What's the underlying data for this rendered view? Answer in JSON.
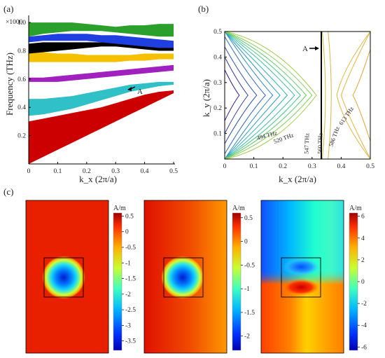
{
  "colors": {
    "band_green": "#2ca02c",
    "band_blue": "#1f3fe0",
    "band_black": "#000000",
    "band_yellow": "#f5c000",
    "band_purple": "#a020c0",
    "band_cyan": "#30c0c8",
    "band_red": "#cc0000",
    "marker_line": "#000000"
  },
  "chart_data": [
    {
      "panel_label": "(a)",
      "type": "area",
      "ylabel": "Frequency (THz)",
      "y_multiplier": "×1000",
      "xlabel": "k_x (2π/a)",
      "xlim": [
        0,
        0.5
      ],
      "ylim": [
        0,
        1.05
      ],
      "x_ticks": [
        "0",
        "0.1",
        "0.2",
        "0.3",
        "0.4",
        "0.5"
      ],
      "y_ticks": [
        "0.2",
        "0.4",
        "0.6",
        "0.8",
        "1.0"
      ],
      "x": [
        0,
        0.05,
        0.1,
        0.15,
        0.2,
        0.25,
        0.3,
        0.35,
        0.4,
        0.45,
        0.5
      ],
      "bands": [
        {
          "color": "band_red",
          "lower": [
            0.0,
            0.05,
            0.1,
            0.15,
            0.2,
            0.25,
            0.3,
            0.35,
            0.4,
            0.45,
            0.5
          ],
          "upper": [
            0.3,
            0.32,
            0.34,
            0.36,
            0.38,
            0.4,
            0.43,
            0.46,
            0.49,
            0.51,
            0.52
          ]
        },
        {
          "color": "band_cyan",
          "lower": [
            0.34,
            0.35,
            0.37,
            0.39,
            0.42,
            0.45,
            0.48,
            0.51,
            0.53,
            0.55,
            0.56
          ],
          "upper": [
            0.46,
            0.46,
            0.47,
            0.48,
            0.5,
            0.52,
            0.54,
            0.56,
            0.57,
            0.58,
            0.58
          ]
        },
        {
          "color": "band_purple",
          "lower": [
            0.58,
            0.58,
            0.58,
            0.59,
            0.6,
            0.61,
            0.62,
            0.63,
            0.64,
            0.65,
            0.66
          ],
          "upper": [
            0.61,
            0.61,
            0.62,
            0.63,
            0.64,
            0.65,
            0.66,
            0.67,
            0.68,
            0.69,
            0.7
          ]
        },
        {
          "color": "band_yellow",
          "lower": [
            0.72,
            0.72,
            0.72,
            0.72,
            0.72,
            0.72,
            0.72,
            0.73,
            0.73,
            0.74,
            0.74
          ],
          "upper": [
            0.79,
            0.79,
            0.78,
            0.78,
            0.77,
            0.77,
            0.77,
            0.77,
            0.78,
            0.78,
            0.78
          ]
        },
        {
          "color": "band_black",
          "lower": [
            0.78,
            0.79,
            0.8,
            0.81,
            0.82,
            0.83,
            0.83,
            0.82,
            0.81,
            0.8,
            0.8
          ],
          "upper": [
            0.85,
            0.86,
            0.86,
            0.86,
            0.86,
            0.86,
            0.86,
            0.86,
            0.85,
            0.84,
            0.84
          ]
        },
        {
          "color": "band_blue",
          "lower": [
            0.86,
            0.87,
            0.87,
            0.87,
            0.87,
            0.86,
            0.85,
            0.84,
            0.83,
            0.82,
            0.82
          ],
          "upper": [
            0.9,
            0.91,
            0.92,
            0.92,
            0.92,
            0.91,
            0.91,
            0.9,
            0.89,
            0.88,
            0.87
          ]
        },
        {
          "color": "band_green",
          "lower": [
            0.9,
            0.92,
            0.93,
            0.94,
            0.94,
            0.94,
            0.93,
            0.92,
            0.91,
            0.9,
            0.9
          ],
          "upper": [
            1.0,
            1.0,
            1.0,
            1.0,
            0.99,
            0.98,
            0.97,
            0.98,
            0.98,
            0.99,
            0.99
          ]
        }
      ],
      "annotation": {
        "text": "A",
        "x": 0.355,
        "y": 0.57
      }
    },
    {
      "panel_label": "(b)",
      "type": "contour",
      "xlabel": "k_x (2π/a)",
      "ylabel": "k_y (2π/a)",
      "xlim": [
        0,
        0.5
      ],
      "ylim": [
        0,
        0.5
      ],
      "x_ticks": [
        "0",
        "0.1",
        "0.2",
        "0.3",
        "0.4",
        "0.5"
      ],
      "y_ticks": [
        "0.1",
        "0.2",
        "0.3",
        "0.4",
        "0.5"
      ],
      "contour_labels": [
        "494 THz",
        "520 THz",
        "547 THz",
        "560 THz",
        "586 THz",
        "613 THz"
      ],
      "marker_line_kx": 0.33,
      "annotation": {
        "text": "A",
        "x": 0.33,
        "y": 0.41
      }
    },
    {
      "panel_label": "(c)",
      "type": "heatmap",
      "maps": [
        {
          "unit": "A/m",
          "colorbar_ticks": [
            "0.5",
            "0",
            "-0.5",
            "-1",
            "-1.5",
            "-2",
            "-2.5",
            "-3",
            "-3.5"
          ],
          "range": [
            -3.8,
            0.6
          ]
        },
        {
          "unit": "A/m",
          "colorbar_ticks": [
            "0.5",
            "0",
            "-0.5",
            "-1",
            "-1.5",
            "-2"
          ],
          "range": [
            -2.3,
            0.6
          ]
        },
        {
          "unit": "A/m",
          "colorbar_ticks": [
            "6",
            "4",
            "2",
            "0",
            "-2",
            "-4",
            "-6"
          ],
          "range": [
            -6.3,
            6.3
          ]
        }
      ]
    }
  ]
}
